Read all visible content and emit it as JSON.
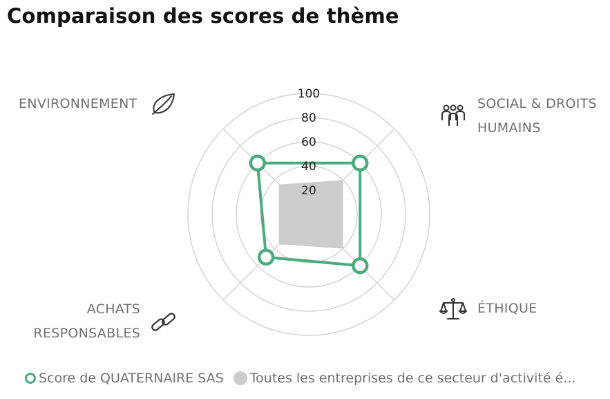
{
  "chart_data": {
    "type": "radar",
    "title": "Comparaison des scores de thème",
    "categories": [
      "ENVIRONNEMENT",
      "SOCIAL & DROITS HUMAINS",
      "ÉTHIQUE",
      "ACHATS RESPONSABLES"
    ],
    "category_lines": [
      [
        "ENVIRONNEMENT"
      ],
      [
        "SOCIAL & DROITS",
        "HUMAINS"
      ],
      [
        "ÉTHIQUE"
      ],
      [
        "ACHATS",
        "RESPONSABLES"
      ]
    ],
    "category_icons": [
      "leaf-icon",
      "people-group-icon",
      "scales-icon",
      "chain-link-icon"
    ],
    "radial_ticks": [
      20,
      40,
      60,
      80,
      100
    ],
    "rlim": [
      0,
      100
    ],
    "series": [
      {
        "name": "Score de QUATERNAIRE SAS",
        "values": [
          60,
          60,
          60,
          50
        ],
        "color": "#4caa7f",
        "style": "outline-markers"
      },
      {
        "name": "Toutes les entreprises de ce secteur d'activité é...",
        "values": [
          35,
          40,
          40,
          35
        ],
        "color": "#cccccc",
        "style": "filled"
      }
    ],
    "grid": true,
    "legend_position": "bottom-left"
  }
}
